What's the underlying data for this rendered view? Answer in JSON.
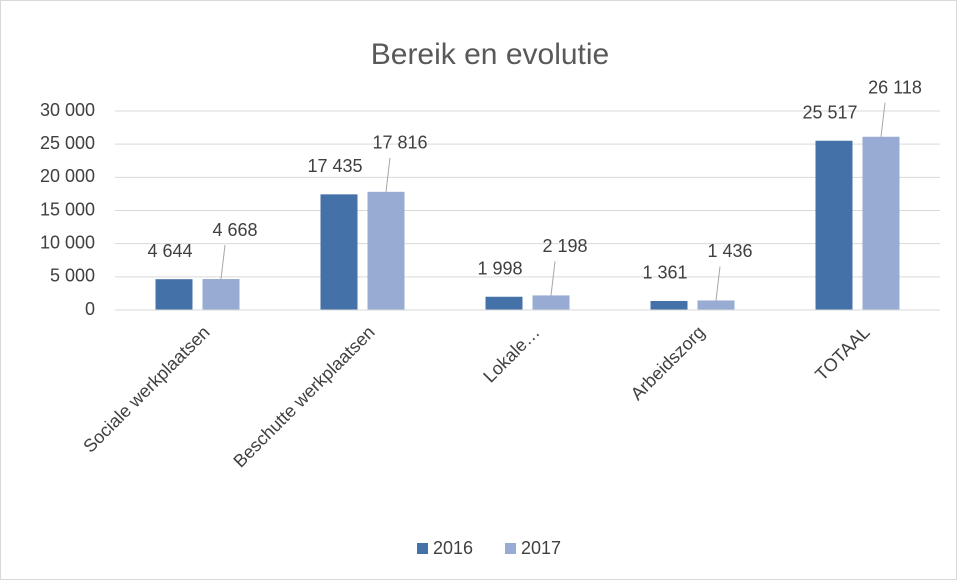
{
  "chart_data": {
    "type": "bar",
    "title": "Bereik en evolutie",
    "categories": [
      "Sociale werkplaatsen",
      "Beschutte werkplaatsen",
      "Lokale…",
      "Arbeidszorg",
      "TOTAAL"
    ],
    "series": [
      {
        "name": "2016",
        "color": "#4472a8",
        "values": [
          4644,
          17435,
          1998,
          1361,
          25517
        ],
        "value_labels": [
          "4 644",
          "17 435",
          "1 998",
          "1 361",
          "25 517"
        ]
      },
      {
        "name": "2017",
        "color": "#97abd3",
        "values": [
          4668,
          17816,
          2198,
          1436,
          26118
        ],
        "value_labels": [
          "4 668",
          "17 816",
          "2 198",
          "1 436",
          "26 118"
        ]
      }
    ],
    "ylim": [
      0,
      30000
    ],
    "yticks": [
      0,
      {
        "value": 5000,
        "label": "5 000"
      },
      {
        "value": 10000,
        "label": "10 000"
      },
      {
        "value": 15000,
        "label": "15 000"
      },
      {
        "value": 20000,
        "label": "20 000"
      },
      {
        "value": 25000,
        "label": "25 000"
      },
      {
        "value": 30000,
        "label": "30 000"
      }
    ],
    "grid": true,
    "legend": "bottom"
  }
}
